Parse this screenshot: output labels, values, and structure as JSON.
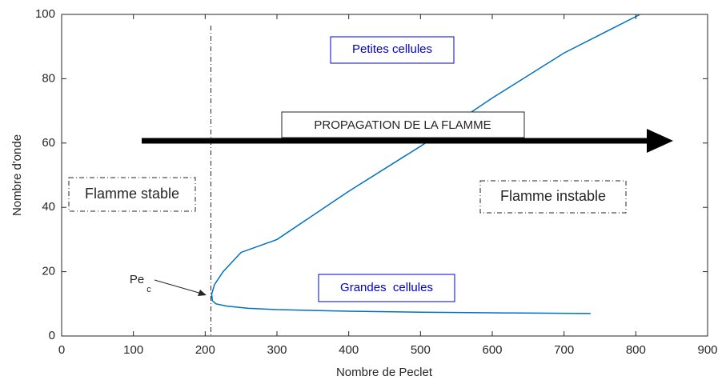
{
  "chart_data": {
    "type": "line",
    "xlabel": "Nombre de Peclet",
    "ylabel": "Nombre d'onde",
    "x": [
      806,
      700,
      600,
      500,
      400,
      300,
      250,
      225,
      213,
      209,
      210,
      215,
      230,
      260,
      300,
      400,
      500,
      600,
      737
    ],
    "series": [
      {
        "color": "#0072BD",
        "values": [
          100,
          88,
          74,
          59,
          45,
          30,
          26,
          20,
          16,
          13,
          11,
          10,
          9.3,
          8.6,
          8.2,
          7.7,
          7.4,
          7.2,
          7
        ]
      }
    ],
    "vline": 208,
    "xlim": [
      0,
      900
    ],
    "ylim": [
      0,
      100
    ],
    "xticks": [
      0,
      100,
      200,
      300,
      400,
      500,
      600,
      700,
      800,
      900
    ],
    "yticks": [
      0,
      20,
      40,
      60,
      80,
      100
    ],
    "grid": false,
    "annotations": [
      "Petites cellules",
      "PROPAGATION DE LA FLAMME",
      "Flamme stable",
      "Flamme instable",
      "Grandes  cellules",
      "Pe",
      "c"
    ]
  }
}
